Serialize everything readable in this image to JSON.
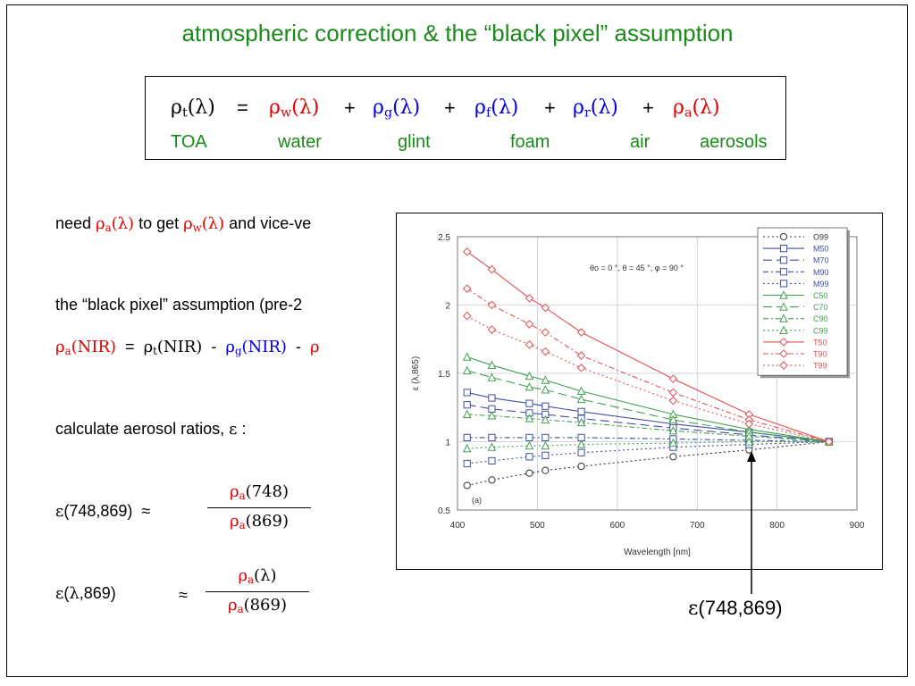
{
  "title": "atmospheric correction & the “black pixel” assumption",
  "equation": {
    "lhs_sym": "ρ",
    "lhs_sub": "t",
    "lhs_arg": "(λ)",
    "eq": "=",
    "terms": [
      {
        "sym": "ρ",
        "sub": "w",
        "arg": "(λ)",
        "color": "#e00000"
      },
      {
        "sym": "ρ",
        "sub": "g",
        "arg": "(λ)",
        "color": "#0000e0"
      },
      {
        "sym": "ρ",
        "sub": "f",
        "arg": "(λ)",
        "color": "#0000e0"
      },
      {
        "sym": "ρ",
        "sub": "r",
        "arg": "(λ)",
        "color": "#0000e0"
      },
      {
        "sym": "ρ",
        "sub": "a",
        "arg": "(λ)",
        "color": "#e00000"
      }
    ],
    "plus": "+",
    "labels": [
      "TOA",
      "water",
      "glint",
      "foam",
      "air",
      "aerosols"
    ]
  },
  "line1": {
    "a": "need ",
    "b_sym": "ρ",
    "b_sub": "a",
    "b_arg": "(λ)",
    "c": " to get ",
    "d_sym": "ρ",
    "d_sub": "w",
    "d_arg": "(λ)",
    "e": " and vice-ve"
  },
  "line2": "the “black pixel” assumption (pre-2",
  "line3": {
    "a_sym": "ρ",
    "a_sub": "a",
    "a_arg": "(NIR)",
    "eq": "=",
    "b_sym": "ρ",
    "b_sub": "t",
    "b_arg": "(NIR)",
    "minus": "-",
    "c_sym": "ρ",
    "c_sub": "g",
    "c_arg": "(NIR)",
    "minus2": "-",
    "d_sym": "ρ"
  },
  "line4": {
    "a": "calculate aerosol ratios, ",
    "eps": "ε",
    "b": " :"
  },
  "ratio1": {
    "eps": "ε",
    "args": "(748,869)",
    "approx": "≈",
    "num_sym": "ρ",
    "num_sub": "a",
    "num_arg": "(748)",
    "den_sym": "ρ",
    "den_sub": "a",
    "den_arg": "(869)"
  },
  "ratio2": {
    "eps": "ε",
    "args_a": "(",
    "lam": "λ",
    "args_b": ",869)",
    "approx": "≈",
    "num_sym": "ρ",
    "num_sub": "a",
    "num_arg": "(λ)",
    "den_sym": "ρ",
    "den_sub": "a",
    "den_arg": "(869)"
  },
  "annotation": {
    "eps": "ε",
    "text": "(748,869)"
  },
  "chart_data": {
    "type": "line",
    "panel_label": "(a)",
    "xlabel": "Wavelength [nm]",
    "ylabel": "ε (λ,865)",
    "annotation": "θo = 0 °, θ = 45 °, φ = 90 °",
    "xlim": [
      400,
      900
    ],
    "ylim": [
      0.5,
      2.5
    ],
    "xticks": [
      400,
      500,
      600,
      700,
      800,
      900
    ],
    "yticks": [
      0.5,
      1,
      1.5,
      2,
      2.5
    ],
    "x": [
      412,
      443,
      490,
      510,
      555,
      670,
      765,
      865
    ],
    "legend_position": "top-right",
    "series": [
      {
        "name": "O99",
        "color": "#333333",
        "dash": "2,3",
        "marker": "circle",
        "values": [
          0.68,
          0.72,
          0.77,
          0.79,
          0.82,
          0.89,
          0.94,
          1.0
        ]
      },
      {
        "name": "M50",
        "color": "#4050a0",
        "dash": "",
        "marker": "square",
        "values": [
          1.36,
          1.32,
          1.28,
          1.26,
          1.22,
          1.13,
          1.07,
          1.0
        ]
      },
      {
        "name": "M70",
        "color": "#4050a0",
        "dash": "10,5",
        "marker": "square",
        "values": [
          1.27,
          1.24,
          1.21,
          1.2,
          1.17,
          1.1,
          1.05,
          1.0
        ]
      },
      {
        "name": "M90",
        "color": "#4050a0",
        "dash": "6,3,2,3",
        "marker": "square",
        "values": [
          1.03,
          1.03,
          1.03,
          1.03,
          1.03,
          1.02,
          1.01,
          1.0
        ]
      },
      {
        "name": "M99",
        "color": "#4050a0",
        "dash": "2,3",
        "marker": "square",
        "values": [
          0.84,
          0.86,
          0.89,
          0.9,
          0.92,
          0.96,
          0.98,
          1.0
        ]
      },
      {
        "name": "C50",
        "color": "#40a050",
        "dash": "",
        "marker": "triangle",
        "values": [
          1.62,
          1.56,
          1.48,
          1.45,
          1.37,
          1.2,
          1.09,
          1.0
        ]
      },
      {
        "name": "C70",
        "color": "#40a050",
        "dash": "10,5",
        "marker": "triangle",
        "values": [
          1.52,
          1.47,
          1.4,
          1.38,
          1.31,
          1.16,
          1.07,
          1.0
        ]
      },
      {
        "name": "C90",
        "color": "#40a050",
        "dash": "6,3,2,3",
        "marker": "triangle",
        "values": [
          1.2,
          1.19,
          1.17,
          1.16,
          1.14,
          1.08,
          1.04,
          1.0
        ]
      },
      {
        "name": "C99",
        "color": "#40a050",
        "dash": "2,3",
        "marker": "triangle",
        "values": [
          0.95,
          0.96,
          0.97,
          0.97,
          0.98,
          0.99,
          1.0,
          1.0
        ]
      },
      {
        "name": "T50",
        "color": "#e05050",
        "dash": "",
        "marker": "diamond",
        "values": [
          2.39,
          2.26,
          2.05,
          1.98,
          1.8,
          1.46,
          1.2,
          1.0
        ]
      },
      {
        "name": "T90",
        "color": "#e05050",
        "dash": "6,3,2,3",
        "marker": "diamond",
        "values": [
          2.12,
          2.0,
          1.86,
          1.8,
          1.63,
          1.36,
          1.16,
          1.0
        ]
      },
      {
        "name": "T99",
        "color": "#e05050",
        "dash": "2,3",
        "marker": "diamond",
        "values": [
          1.92,
          1.82,
          1.71,
          1.66,
          1.54,
          1.3,
          1.13,
          1.0
        ]
      }
    ]
  }
}
